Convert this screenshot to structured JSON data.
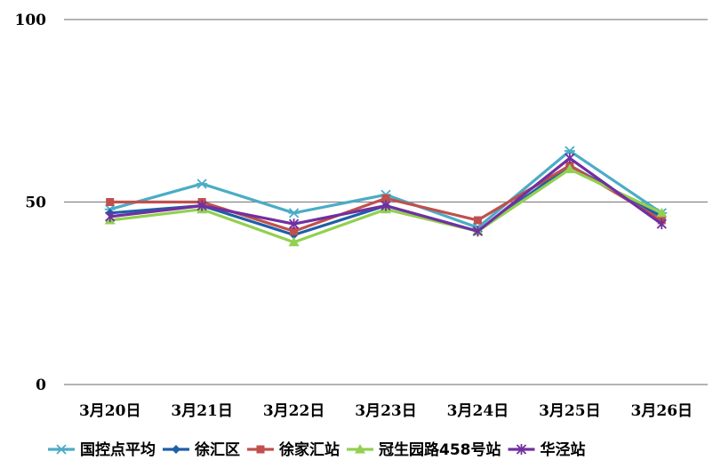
{
  "chart_data": {
    "type": "line",
    "categories": [
      "3月20日",
      "3月21日",
      "3月22日",
      "3月23日",
      "3月24日",
      "3月25日",
      "3月26日"
    ],
    "ylim": [
      0,
      100
    ],
    "yticks": [
      0,
      50,
      100
    ],
    "grid": true,
    "legend_position": "bottom",
    "series": [
      {
        "name": "国控点平均",
        "color": "#4BACC6",
        "marker": "asterisk",
        "values": [
          48,
          55,
          47,
          52,
          43,
          64,
          47
        ]
      },
      {
        "name": "徐汇区",
        "color": "#1F5FA8",
        "marker": "diamond",
        "values": [
          47,
          49,
          41,
          49,
          42,
          60,
          46
        ]
      },
      {
        "name": "徐家汇站",
        "color": "#C0504D",
        "marker": "square",
        "values": [
          50,
          50,
          42,
          51,
          45,
          60,
          45
        ]
      },
      {
        "name": "冠生园路458号站",
        "color": "#92D050",
        "marker": "triangle",
        "values": [
          45,
          48,
          39,
          48,
          42,
          59,
          47
        ]
      },
      {
        "name": "华泾站",
        "color": "#7030A0",
        "marker": "star",
        "values": [
          46,
          49,
          44,
          49,
          42,
          62,
          44
        ]
      }
    ]
  }
}
